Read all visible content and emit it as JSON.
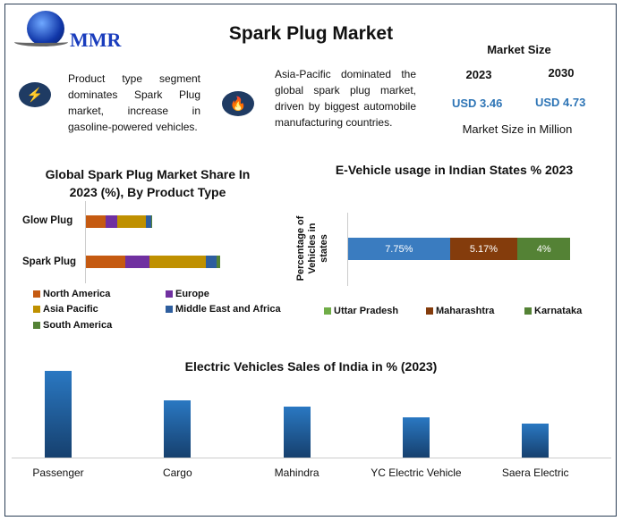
{
  "header": {
    "logo_text": "MMR",
    "title": "Spark Plug Market"
  },
  "info": [
    {
      "icon": "lightning-bolt-icon",
      "text": "Product type segment dominates Spark Plug market, increase in gasoline-powered vehicles."
    },
    {
      "icon": "flame-icon",
      "text": "Asia-Pacific dominated the global spark plug market, driven by biggest automobile manufacturing countries."
    }
  ],
  "market_size": {
    "heading": "Market Size",
    "year1": "2023",
    "year2": "2030",
    "value1": "USD 3.46",
    "value2": "USD 4.73",
    "unit": "Market Size in Million"
  },
  "chart_data": [
    {
      "type": "bar",
      "orientation": "horizontal",
      "stacked": true,
      "title": "Global Spark Plug Market Share In 2023 (%), By Product Type",
      "categories": [
        "Glow Plug",
        "Spark Plug"
      ],
      "series": [
        {
          "name": "North America",
          "values": [
            22,
            44
          ],
          "color": "#c55a11"
        },
        {
          "name": "Europe",
          "values": [
            13,
            27
          ],
          "color": "#7030a0"
        },
        {
          "name": "Asia Pacific",
          "values": [
            32,
            63
          ],
          "color": "#bf9000"
        },
        {
          "name": "Middle East and Africa",
          "values": [
            6,
            12
          ],
          "color": "#2e5e9e"
        },
        {
          "name": "South America",
          "values": [
            1,
            4
          ],
          "color": "#548235"
        }
      ],
      "legend": "bottom",
      "grid": false
    },
    {
      "type": "bar",
      "orientation": "horizontal",
      "stacked": true,
      "title": "E-Vehicle usage in Indian States % 2023",
      "ylabel": "Percentage of Vehicles in states",
      "series": [
        {
          "name": "Uttar Pradesh",
          "value": 7.75,
          "label": "7.75%",
          "color": "#3a7cc0",
          "legend_color": "#70ad47"
        },
        {
          "name": "Maharashtra",
          "value": 5.17,
          "label": "5.17%",
          "color": "#843c0c",
          "legend_color": "#843c0c"
        },
        {
          "name": "Karnataka",
          "value": 4,
          "label": "4%",
          "color": "#548235",
          "legend_color": "#548235"
        }
      ],
      "legend": "bottom",
      "grid": false
    },
    {
      "type": "bar",
      "title": "Electric Vehicles Sales of India in % (2023)",
      "categories": [
        "Passenger",
        "Cargo",
        "Mahindra",
        "YC Electric Vehicle",
        "Saera Electric"
      ],
      "values": [
        97,
        64,
        57,
        45,
        38
      ],
      "color": "#2e75b6",
      "grid": false
    }
  ]
}
